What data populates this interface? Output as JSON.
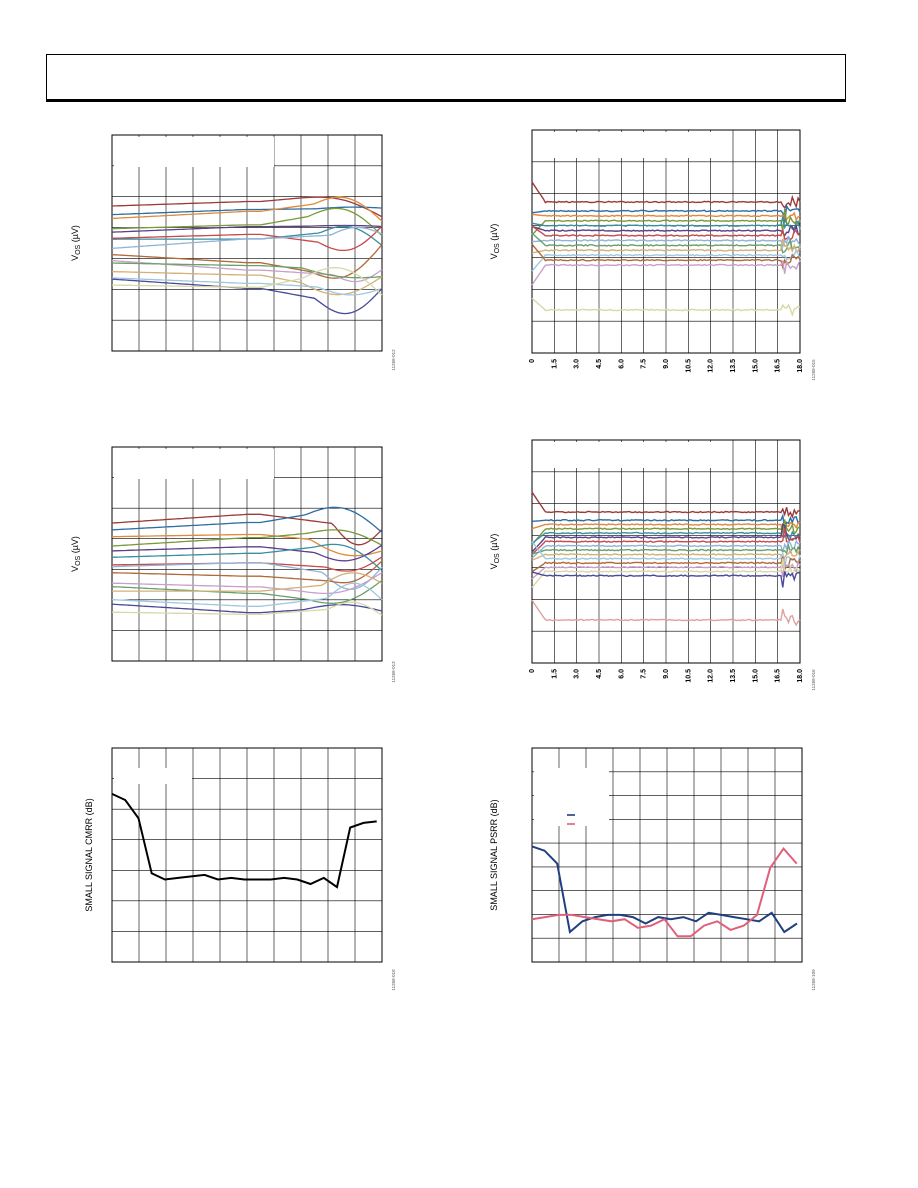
{
  "page": {
    "header_text": ""
  },
  "chart_data": [
    {
      "id": "c1",
      "type": "line",
      "title": "",
      "ylabel": "V_OS (µV)",
      "ylabel_main": "V",
      "ylabel_sub": "OS",
      "ylabel_tail": " (µV)",
      "figure_id": "11268-012",
      "grid": true,
      "legend": "none",
      "series_colors": [
        "#9b3a3a",
        "#2e6da4",
        "#e08a3c",
        "#7a9a3a",
        "#5a3f8a",
        "#3a8fa0",
        "#c84a4a",
        "#8fb4d8",
        "#b06a3a",
        "#c8a0c8",
        "#6aa06a",
        "#d4b07a",
        "#9fc7e0",
        "#4a4a9a",
        "#d8d8a8"
      ]
    },
    {
      "id": "c2",
      "type": "line",
      "title": "",
      "ylabel": "V_OS (µV)",
      "ylabel_main": "V",
      "ylabel_sub": "OS",
      "ylabel_tail": " (µV)",
      "figure_id": "11268-015",
      "x_ticks": [
        "0",
        "1.5",
        "3.0",
        "4.5",
        "6.0",
        "7.5",
        "9.0",
        "10.5",
        "12.0",
        "13.5",
        "15.0",
        "16.5",
        "18.0"
      ],
      "grid": true,
      "legend": "none",
      "series_colors": [
        "#9b3a3a",
        "#2e6da4",
        "#e08a3c",
        "#7a9a3a",
        "#3a8fa0",
        "#5a3f8a",
        "#c84a4a",
        "#8fb4d8",
        "#6aa06a",
        "#d4b07a",
        "#9fc7e0",
        "#b06a3a",
        "#c8a0c8",
        "#d8d8a8"
      ]
    },
    {
      "id": "c3",
      "type": "line",
      "title": "",
      "ylabel": "V_OS (µV)",
      "ylabel_main": "V",
      "ylabel_sub": "OS",
      "ylabel_tail": " (µV)",
      "figure_id": "11268-013",
      "grid": true,
      "legend": "none",
      "series_colors": [
        "#9b3a3a",
        "#2e6da4",
        "#e08a3c",
        "#7a9a3a",
        "#5a3f8a",
        "#3a8fa0",
        "#c84a4a",
        "#8fb4d8",
        "#b06a3a",
        "#c8a0c8",
        "#6aa06a",
        "#d4b07a",
        "#9fc7e0",
        "#4a4a9a",
        "#d8d8a8"
      ]
    },
    {
      "id": "c4",
      "type": "line",
      "title": "",
      "ylabel": "V_OS (µV)",
      "ylabel_main": "V",
      "ylabel_sub": "OS",
      "ylabel_tail": " (µV)",
      "figure_id": "11268-016",
      "x_ticks": [
        "0",
        "1.5",
        "3.0",
        "4.5",
        "6.0",
        "7.5",
        "9.0",
        "10.5",
        "12.0",
        "13.5",
        "15.0",
        "16.5",
        "18.0"
      ],
      "grid": true,
      "legend": "none",
      "series_colors": [
        "#9b3a3a",
        "#2e6da4",
        "#e08a3c",
        "#7a9a3a",
        "#3a8fa0",
        "#5a3f8a",
        "#c84a4a",
        "#8fb4d8",
        "#6aa06a",
        "#d4b07a",
        "#9fc7e0",
        "#b06a3a",
        "#c8a0c8",
        "#d8d8a8",
        "#4a4a9a",
        "#e0a0a0"
      ]
    },
    {
      "id": "c5",
      "type": "line",
      "title": "",
      "ylabel": "SMALL SIGNAL CMRR (dB)",
      "figure_id": "11268-018",
      "grid": true,
      "legend": "none",
      "series": [
        {
          "name": "",
          "color": "#000000",
          "values": [
            7.5,
            7.3,
            6.7,
            4.9,
            4.7,
            4.75,
            4.8,
            4.85,
            4.7,
            4.75,
            4.7,
            4.7,
            4.7,
            4.75,
            4.7,
            4.55,
            4.75,
            4.45,
            6.4,
            6.55,
            6.6
          ]
        }
      ],
      "ylim": [
        2,
        9
      ]
    },
    {
      "id": "c6",
      "type": "line",
      "title": "",
      "ylabel": "SMALL SIGNAL PSRR (dB)",
      "figure_id": "11268-109",
      "grid": true,
      "legend": "top-left",
      "series": [
        {
          "name": "",
          "color": "#1f3f7f",
          "values": [
            4.7,
            4.6,
            4.3,
            2.7,
            2.95,
            3.05,
            3.1,
            3.1,
            3.05,
            2.9,
            3.05,
            3.0,
            3.05,
            2.95,
            3.15,
            3.1,
            3.05,
            3.0,
            2.95,
            3.15,
            2.7,
            2.9
          ]
        },
        {
          "name": "",
          "color": "#e0607a",
          "values": [
            3.0,
            3.05,
            3.1,
            3.1,
            3.05,
            3.0,
            2.95,
            3.0,
            2.8,
            2.85,
            3.0,
            2.6,
            2.6,
            2.85,
            2.95,
            2.75,
            2.85,
            3.1,
            4.2,
            4.65,
            4.3
          ]
        }
      ],
      "ylim": [
        2,
        7
      ]
    }
  ]
}
